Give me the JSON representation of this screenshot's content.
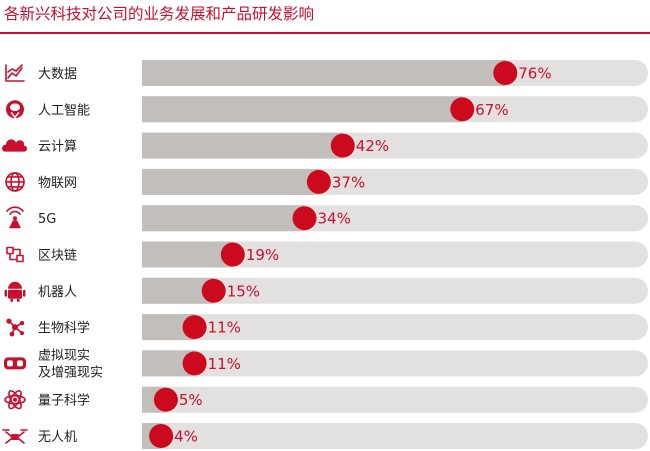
{
  "title": "各新兴科技对公司的业务发展和产品研发影响",
  "colors": {
    "accent": "#c8102e",
    "track": "#e3e1df",
    "fill": "#c2bebb",
    "marker": "#cc0a1e"
  },
  "chart_data": {
    "type": "bar",
    "orientation": "horizontal",
    "title": "各新兴科技对公司的业务发展和产品研发影响",
    "unit": "%",
    "xlim": [
      0,
      100
    ],
    "grid": false,
    "legend": "none",
    "categories": [
      {
        "label": [
          "大数据"
        ],
        "icon": "trend-chart-icon"
      },
      {
        "label": [
          "人工智能"
        ],
        "icon": "brain-icon"
      },
      {
        "label": [
          "云计算"
        ],
        "icon": "cloud-icon"
      },
      {
        "label": [
          "物联网"
        ],
        "icon": "globe-icon"
      },
      {
        "label": [
          "5G"
        ],
        "icon": "antenna-icon"
      },
      {
        "label": [
          "区块链"
        ],
        "icon": "blockchain-icon"
      },
      {
        "label": [
          "机器人"
        ],
        "icon": "android-robot-icon"
      },
      {
        "label": [
          "生物科学"
        ],
        "icon": "molecule-icon"
      },
      {
        "label": [
          "虚拟现实",
          "及增强现实"
        ],
        "icon": "vr-headset-icon"
      },
      {
        "label": [
          "量子科学"
        ],
        "icon": "atom-icon"
      },
      {
        "label": [
          "无人机"
        ],
        "icon": "drone-icon"
      }
    ],
    "values": [
      76,
      67,
      42,
      37,
      34,
      19,
      15,
      11,
      11,
      5,
      4
    ],
    "value_labels": [
      "76%",
      "67%",
      "42%",
      "37%",
      "34%",
      "19%",
      "15%",
      "11%",
      "11%",
      "5%",
      "4%"
    ]
  }
}
